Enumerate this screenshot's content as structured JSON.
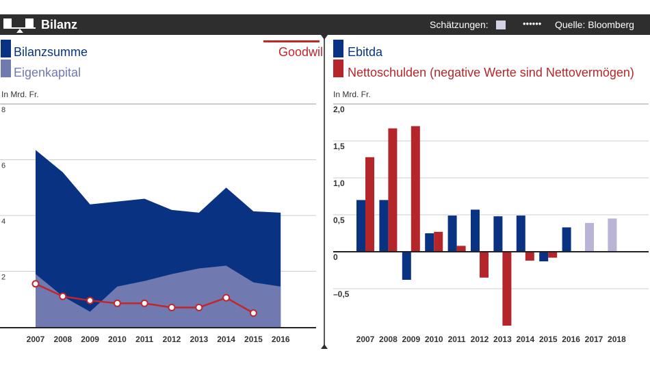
{
  "header": {
    "title": "Bilanz",
    "estimates_label": "Schätzungen:",
    "dots": "••••••",
    "source": "Quelle: Bloomberg",
    "icon": "balance-scale-icon"
  },
  "colors": {
    "bilanzsumme": "#0a3282",
    "eigenkapital": "#7079b0",
    "goodwill": "#c0272d",
    "ebitda": "#0a3282",
    "nettoschulden": "#b5262b",
    "estimate": "#b7b4d6",
    "header": "#2e2e2e"
  },
  "chart_data": [
    {
      "type": "area",
      "unit": "In Mrd. Fr.",
      "ylim": [
        0,
        8
      ],
      "yticks": [
        "2",
        "4",
        "6",
        "8"
      ],
      "ytick_values": [
        2,
        4,
        6,
        8
      ],
      "grid": true,
      "categories": [
        "2007",
        "2008",
        "2009",
        "2010",
        "2011",
        "2012",
        "2013",
        "2014",
        "2015",
        "2016"
      ],
      "series": [
        {
          "name": "Bilanzsumme",
          "type": "area",
          "values": [
            6.35,
            5.55,
            4.4,
            4.5,
            4.6,
            4.2,
            4.1,
            5.0,
            4.15,
            4.1
          ]
        },
        {
          "name": "Eigenkapital",
          "type": "area",
          "values": [
            1.9,
            1.1,
            0.55,
            1.45,
            1.65,
            1.9,
            2.1,
            2.2,
            1.6,
            1.45
          ]
        },
        {
          "name": "Goodwill",
          "type": "line",
          "values": [
            1.55,
            1.1,
            0.95,
            0.85,
            0.85,
            0.7,
            0.7,
            1.05,
            0.5,
            null
          ]
        }
      ]
    },
    {
      "type": "bar",
      "unit": "In Mrd. Fr.",
      "ylim": [
        -1,
        2
      ],
      "yticks": [
        "2,0",
        "1,5",
        "1,0",
        "0,5",
        "0",
        "–0,5"
      ],
      "ytick_values": [
        2,
        1.5,
        1,
        0.5,
        0,
        -0.5
      ],
      "grid": true,
      "categories": [
        "2007",
        "2008",
        "2009",
        "2010",
        "2011",
        "2012",
        "2013",
        "2014",
        "2015",
        "2016",
        "2017",
        "2018"
      ],
      "estimate_categories": [
        "2017",
        "2018"
      ],
      "series": [
        {
          "name": "Ebitda",
          "values": [
            0.7,
            0.7,
            -0.38,
            0.25,
            0.49,
            0.57,
            0.48,
            0.49,
            -0.13,
            0.33,
            0.39,
            0.45
          ]
        },
        {
          "name": "Nettoschulden (negative Werte sind Nettovermögen)",
          "values": [
            1.28,
            1.67,
            1.7,
            0.27,
            0.08,
            -0.35,
            -1.0,
            -0.12,
            -0.08,
            null,
            null,
            null
          ]
        }
      ]
    }
  ]
}
